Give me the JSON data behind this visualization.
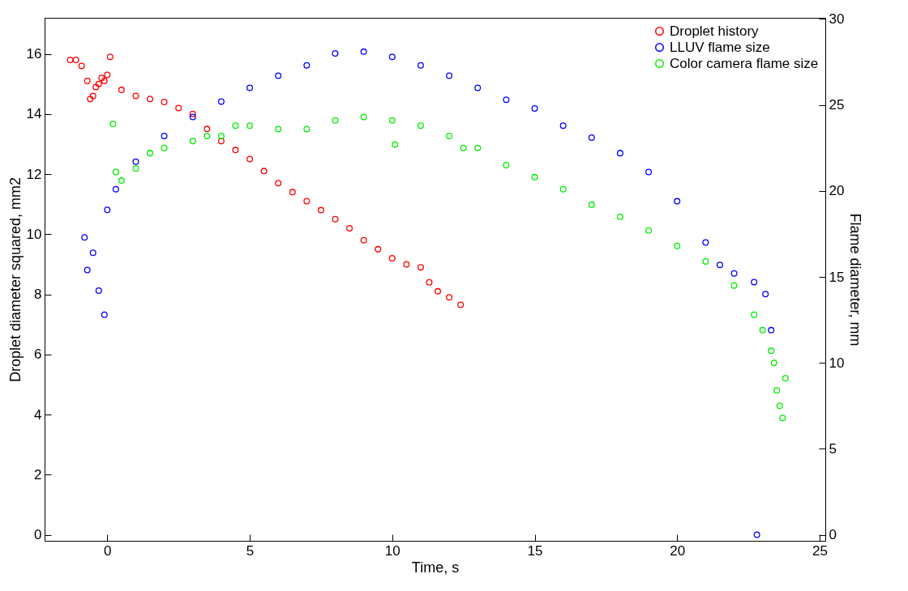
{
  "chart_data": {
    "type": "scatter",
    "xlabel": "Time, s",
    "ylabel": "Droplet diameter squared, mm2",
    "y2label": "Flame diameter, mm",
    "xlim": [
      -2.2,
      25.2
    ],
    "xticks": [
      0,
      5,
      10,
      15,
      20,
      25
    ],
    "ylim": [
      -0.2,
      17.2
    ],
    "yticks": [
      0,
      2,
      4,
      6,
      8,
      10,
      12,
      14,
      16
    ],
    "y2lim": [
      -0.35,
      30.07
    ],
    "y2ticks": [
      0,
      5,
      10,
      15,
      20,
      25,
      30
    ],
    "marker": "circle",
    "legend": "top right",
    "series": [
      {
        "name": "Droplet history",
        "color": "#ff0000",
        "x": [
          -1.3,
          -1.1,
          -0.9,
          -0.7,
          -0.6,
          -0.5,
          -0.4,
          -0.3,
          -0.2,
          -0.1,
          0,
          0.1,
          0.5,
          1,
          1.5,
          2,
          2.5,
          3,
          3.5,
          4,
          4.5,
          5,
          5.5,
          6,
          6.5,
          7,
          7.5,
          8,
          8.5,
          9,
          9.5,
          10,
          10.5,
          11,
          11.3,
          11.6,
          12,
          12.4
        ],
        "values": [
          15.8,
          15.8,
          15.6,
          15.1,
          14.5,
          14.6,
          14.9,
          15.0,
          15.2,
          15.1,
          15.3,
          15.9,
          14.8,
          14.6,
          14.5,
          14.4,
          14.2,
          14.0,
          13.5,
          13.1,
          12.8,
          12.5,
          12.1,
          11.7,
          11.4,
          11.1,
          10.8,
          10.5,
          10.2,
          9.8,
          9.5,
          9.2,
          9.0,
          8.9,
          8.4,
          8.1,
          7.9,
          7.65
        ]
      },
      {
        "name": "LLUV flame size",
        "color": "#0000ff",
        "axis": "y2",
        "x": [
          -0.8,
          -0.7,
          -0.5,
          -0.3,
          -0.1,
          0,
          0.3,
          1,
          2,
          3,
          4,
          5,
          6,
          7,
          8,
          9,
          10,
          11,
          12,
          13,
          14,
          15,
          16,
          17,
          18,
          19,
          20,
          21,
          21.5,
          22,
          22.7,
          22.8,
          23.1,
          23.3
        ],
        "values": [
          17.3,
          15.4,
          16.4,
          14.2,
          12.8,
          18.9,
          20.1,
          21.7,
          23.2,
          24.3,
          25.2,
          26.0,
          26.7,
          27.3,
          28.0,
          28.1,
          27.8,
          27.3,
          26.7,
          26.0,
          25.3,
          24.8,
          23.8,
          23.1,
          22.2,
          21.1,
          19.4,
          17.0,
          15.7,
          15.2,
          14.7,
          0,
          14.0,
          11.9
        ]
      },
      {
        "name": "Color camera flame size",
        "color": "#00ee00",
        "axis": "y2",
        "x": [
          0.2,
          0.3,
          0.5,
          1,
          1.5,
          2,
          3,
          3.5,
          4,
          4.5,
          5,
          6,
          7,
          8,
          9,
          10,
          10.1,
          11,
          12,
          12.5,
          13,
          14,
          15,
          16,
          17,
          18,
          19,
          20,
          21,
          22,
          22.7,
          23,
          23.3,
          23.4,
          23.5,
          23.6,
          23.7,
          23.8
        ],
        "values": [
          23.9,
          21.1,
          20.6,
          21.3,
          22.2,
          22.5,
          22.9,
          23.2,
          23.2,
          23.8,
          23.8,
          23.6,
          23.6,
          24.1,
          24.3,
          24.1,
          22.7,
          23.8,
          23.2,
          22.5,
          22.5,
          21.5,
          20.8,
          20.1,
          19.2,
          18.5,
          17.7,
          16.8,
          15.9,
          14.5,
          12.8,
          11.9,
          10.7,
          10.0,
          8.4,
          7.5,
          6.8,
          9.1
        ]
      }
    ]
  }
}
